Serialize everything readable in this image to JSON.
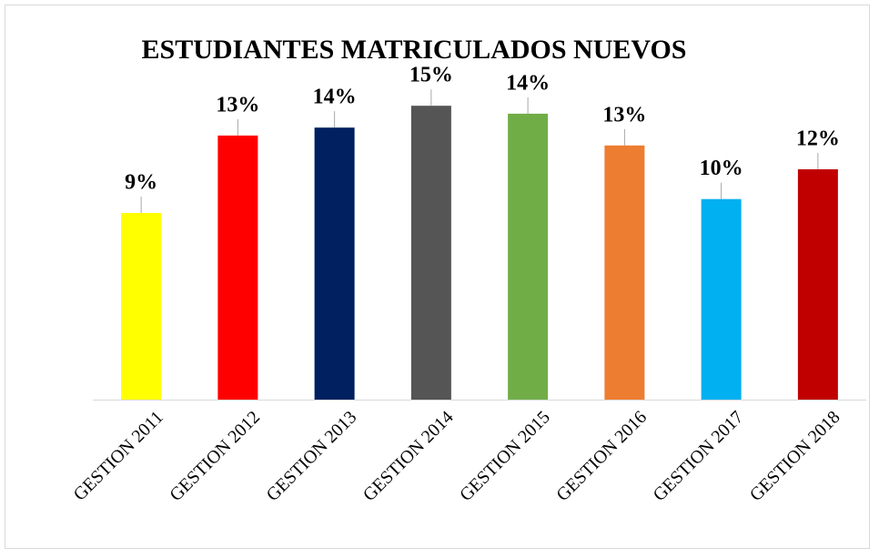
{
  "chart_data": {
    "type": "bar",
    "title": "ESTUDIANTES MATRICULADOS NUEVOS",
    "categories": [
      "GESTION 2011",
      "GESTION 2012",
      "GESTION 2013",
      "GESTION 2014",
      "GESTION 2015",
      "GESTION 2016",
      "GESTION 2017",
      "GESTION 2018"
    ],
    "values": [
      9.4,
      13.3,
      13.7,
      14.8,
      14.4,
      12.8,
      10.1,
      11.6
    ],
    "value_labels": [
      "9%",
      "13%",
      "14%",
      "15%",
      "14%",
      "13%",
      "10%",
      "12%"
    ],
    "colors": [
      "#ffff00",
      "#ff0000",
      "#002060",
      "#555555",
      "#70ad47",
      "#ed7d31",
      "#00b0f0",
      "#c00000"
    ],
    "ylim": [
      0,
      16
    ]
  }
}
